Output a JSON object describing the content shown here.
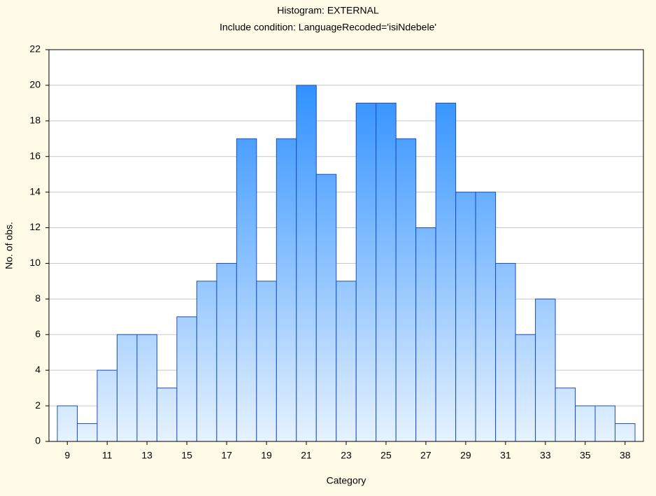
{
  "chart_data": {
    "type": "bar",
    "title": "Histogram: EXTERNAL",
    "subtitle": "Include condition: LanguageRecoded='isiNdebele'",
    "x_label": "Category",
    "y_label": "No. of obs.",
    "categories": [
      "9",
      null,
      "11",
      null,
      "13",
      null,
      "15",
      null,
      "17",
      null,
      "19",
      null,
      "21",
      null,
      "23",
      null,
      "25",
      null,
      "27",
      null,
      "29",
      null,
      "31",
      null,
      "33",
      null,
      "35",
      null,
      "38"
    ],
    "values": [
      2,
      1,
      4,
      6,
      6,
      3,
      7,
      9,
      10,
      17,
      9,
      17,
      20,
      15,
      9,
      19,
      19,
      17,
      12,
      19,
      14,
      14,
      10,
      6,
      8,
      3,
      2,
      2,
      1
    ],
    "color": "#1e88ff",
    "ylim": [
      0,
      22
    ],
    "yticks": [
      0,
      2,
      4,
      6,
      8,
      10,
      12,
      14,
      16,
      18,
      20,
      22
    ],
    "grid": true
  }
}
